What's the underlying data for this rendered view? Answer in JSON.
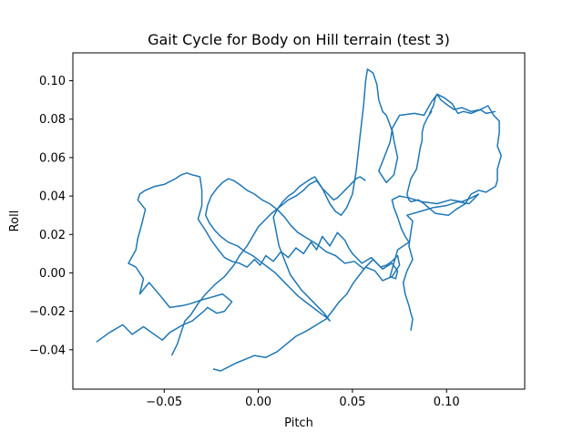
{
  "chart_data": {
    "type": "line",
    "title": "Gait Cycle for Body on Hill terrain (test 3)",
    "xlabel": "Pitch",
    "ylabel": "Roll",
    "xlim": [
      -0.0985,
      0.1415
    ],
    "ylim": [
      -0.0605,
      0.1145
    ],
    "x_ticks": [
      -0.05,
      0.0,
      0.05,
      0.1
    ],
    "x_tick_labels": [
      "−0.05",
      "0.00",
      "0.05",
      "0.10"
    ],
    "y_ticks": [
      -0.04,
      -0.02,
      0.0,
      0.02,
      0.04,
      0.06,
      0.08,
      0.1
    ],
    "y_tick_labels": [
      "−0.04",
      "−0.02",
      "0.00",
      "0.02",
      "0.04",
      "0.06",
      "0.08",
      "0.10"
    ],
    "grid": false,
    "line_color": "#1f77b4",
    "series": [
      {
        "x": [
          -0.086,
          -0.079,
          -0.072,
          -0.067,
          -0.061,
          -0.051,
          -0.047,
          -0.04,
          -0.035,
          -0.029,
          -0.027,
          -0.022,
          -0.018,
          -0.014,
          -0.019,
          -0.026,
          -0.03,
          -0.036,
          -0.04,
          -0.047,
          -0.052,
          -0.058,
          -0.063,
          -0.061,
          -0.065,
          -0.069,
          -0.065,
          -0.064,
          -0.062,
          -0.06,
          -0.064,
          -0.063,
          -0.06,
          -0.055,
          -0.05,
          -0.044,
          -0.041,
          -0.038,
          -0.035,
          -0.031,
          -0.03,
          -0.03,
          -0.032,
          -0.028,
          -0.025,
          -0.022,
          -0.018,
          -0.014,
          -0.01,
          -0.006,
          -0.002,
          0.001,
          0.004,
          0.008,
          0.012,
          0.016,
          0.02,
          0.024,
          0.028,
          0.031,
          0.034,
          0.038,
          0.042,
          0.046,
          0.048,
          0.05,
          0.055,
          0.06,
          0.066,
          0.071,
          0.074,
          0.073,
          0.07,
          0.074,
          0.08,
          0.078,
          0.076,
          0.074,
          0.072,
          0.071,
          0.075,
          0.08,
          0.087,
          0.095,
          0.102,
          0.108,
          0.113,
          0.117,
          0.112,
          0.106,
          0.1,
          0.093,
          0.086,
          0.079,
          0.082,
          0.081,
          0.08,
          0.082,
          0.079,
          0.077,
          0.078,
          0.08,
          0.081,
          0.082,
          0.081
        ],
        "y": [
          -0.036,
          -0.031,
          -0.027,
          -0.032,
          -0.028,
          -0.035,
          -0.031,
          -0.027,
          -0.025,
          -0.02,
          -0.018,
          -0.021,
          -0.02,
          -0.015,
          -0.011,
          -0.013,
          -0.014,
          -0.016,
          -0.017,
          -0.018,
          -0.012,
          -0.005,
          -0.011,
          -0.003,
          0.003,
          0.005,
          0.012,
          0.018,
          0.025,
          0.033,
          0.038,
          0.041,
          0.043,
          0.045,
          0.046,
          0.049,
          0.051,
          0.052,
          0.051,
          0.05,
          0.043,
          0.035,
          0.028,
          0.022,
          0.017,
          0.013,
          0.008,
          0.006,
          0.005,
          0.003,
          0.007,
          0.004,
          0.009,
          0.006,
          0.011,
          0.008,
          0.013,
          0.01,
          0.016,
          0.012,
          0.019,
          0.014,
          0.021,
          0.017,
          0.013,
          0.01,
          0.005,
          0.008,
          0.002,
          0.005,
          0.001,
          -0.003,
          -0.002,
          0.012,
          0.016,
          0.019,
          0.023,
          0.029,
          0.034,
          0.038,
          0.04,
          0.039,
          0.037,
          0.036,
          0.038,
          0.037,
          0.039,
          0.041,
          0.036,
          0.037,
          0.035,
          0.034,
          0.032,
          0.03,
          0.027,
          0.021,
          0.014,
          0.007,
          0.001,
          -0.005,
          -0.011,
          -0.017,
          -0.021,
          -0.024,
          -0.03
        ]
      },
      {
        "x": [
          -0.046,
          -0.043,
          -0.041,
          -0.039,
          -0.036,
          -0.032,
          -0.028,
          -0.023,
          -0.018,
          -0.013,
          -0.01,
          -0.006,
          -0.003,
          0.0,
          0.003,
          0.007,
          0.011,
          0.016,
          0.02,
          0.024,
          0.027,
          0.031,
          0.034,
          0.038,
          0.041,
          0.044,
          0.047,
          0.05,
          0.052,
          0.054,
          0.056,
          0.057,
          0.058,
          0.061,
          0.063,
          0.064,
          0.066,
          0.068,
          0.07,
          0.071,
          0.07,
          0.068,
          0.066,
          0.064,
          0.068,
          0.072,
          0.074,
          0.072,
          0.071,
          0.075,
          0.083,
          0.088,
          0.092,
          0.095,
          0.099,
          0.103,
          0.106,
          0.109,
          0.113,
          0.118,
          0.122,
          0.125,
          0.128,
          0.128,
          0.127,
          0.129,
          0.127,
          0.127,
          0.126,
          0.121,
          0.117,
          0.113,
          0.11,
          0.105,
          0.101,
          0.094,
          0.088,
          0.085,
          0.081,
          0.08,
          0.079,
          0.08,
          0.081,
          0.084,
          0.085,
          0.086,
          0.087,
          0.087,
          0.088,
          0.09,
          0.092,
          0.091,
          0.093,
          0.094,
          0.095,
          0.097,
          0.101,
          0.104,
          0.108,
          0.113,
          0.118,
          0.121,
          0.126
        ],
        "y": [
          -0.043,
          -0.037,
          -0.031,
          -0.025,
          -0.022,
          -0.016,
          -0.011,
          -0.006,
          -0.002,
          0.004,
          0.009,
          0.014,
          0.019,
          0.024,
          0.027,
          0.031,
          0.034,
          0.038,
          0.04,
          0.043,
          0.046,
          0.048,
          0.044,
          0.036,
          0.032,
          0.03,
          0.034,
          0.041,
          0.053,
          0.071,
          0.088,
          0.1,
          0.106,
          0.104,
          0.098,
          0.09,
          0.084,
          0.082,
          0.077,
          0.074,
          0.068,
          0.063,
          0.058,
          0.053,
          0.047,
          0.051,
          0.06,
          0.069,
          0.075,
          0.082,
          0.083,
          0.082,
          0.089,
          0.093,
          0.091,
          0.088,
          0.083,
          0.084,
          0.083,
          0.085,
          0.087,
          0.082,
          0.079,
          0.073,
          0.066,
          0.061,
          0.054,
          0.048,
          0.045,
          0.042,
          0.043,
          0.041,
          0.036,
          0.033,
          0.03,
          0.031,
          0.036,
          0.038,
          0.037,
          0.038,
          0.041,
          0.045,
          0.049,
          0.054,
          0.059,
          0.065,
          0.069,
          0.073,
          0.077,
          0.081,
          0.084,
          0.083,
          0.087,
          0.091,
          0.093,
          0.09,
          0.087,
          0.085,
          0.086,
          0.084,
          0.085,
          0.083,
          0.084
        ]
      },
      {
        "x": [
          -0.024,
          -0.02,
          -0.016,
          -0.012,
          -0.007,
          -0.002,
          0.004,
          0.01,
          0.015,
          0.02,
          0.026,
          0.031,
          0.036,
          0.04,
          0.043,
          0.047,
          0.05,
          0.053,
          0.057,
          0.062,
          0.066,
          0.071,
          0.075,
          0.074,
          0.071,
          0.068,
          0.065,
          0.061,
          0.056,
          0.051,
          0.046,
          0.041,
          0.036,
          0.031,
          0.026,
          0.021,
          0.017,
          0.014,
          0.01,
          0.006,
          0.002,
          -0.002,
          -0.006,
          -0.01,
          -0.013,
          -0.016,
          -0.019,
          -0.022,
          -0.025,
          -0.027,
          -0.028,
          -0.026,
          -0.023,
          -0.02,
          -0.016,
          -0.011,
          -0.007,
          -0.003,
          0.001,
          0.005,
          0.009,
          0.012,
          0.015,
          0.018,
          0.021,
          0.025,
          0.029,
          0.033,
          0.036,
          0.038,
          0.035,
          0.031,
          0.027,
          0.023,
          0.02,
          0.017,
          0.015,
          0.013,
          0.011,
          0.01,
          0.009,
          0.008,
          0.01,
          0.013,
          0.016,
          0.019,
          0.022,
          0.025,
          0.028,
          0.03,
          0.032,
          0.034,
          0.036,
          0.038,
          0.04,
          0.042,
          0.044,
          0.046,
          0.048,
          0.05,
          0.052,
          0.054,
          0.057
        ],
        "y": [
          -0.05,
          -0.051,
          -0.049,
          -0.047,
          -0.045,
          -0.043,
          -0.044,
          -0.041,
          -0.037,
          -0.033,
          -0.03,
          -0.027,
          -0.024,
          -0.019,
          -0.015,
          -0.011,
          -0.006,
          -0.002,
          0.003,
          0.001,
          -0.004,
          -0.002,
          0.004,
          0.009,
          0.006,
          0.004,
          0.003,
          0.007,
          0.002,
          0.006,
          0.005,
          0.009,
          0.011,
          0.015,
          0.018,
          0.021,
          0.025,
          0.029,
          0.033,
          0.036,
          0.038,
          0.041,
          0.043,
          0.046,
          0.048,
          0.049,
          0.047,
          0.044,
          0.04,
          0.035,
          0.03,
          0.026,
          0.022,
          0.019,
          0.016,
          0.014,
          0.011,
          0.009,
          0.006,
          0.003,
          0.0,
          -0.003,
          -0.006,
          -0.009,
          -0.012,
          -0.015,
          -0.018,
          -0.021,
          -0.023,
          -0.025,
          -0.021,
          -0.017,
          -0.013,
          -0.009,
          -0.005,
          -0.001,
          0.004,
          0.009,
          0.014,
          0.019,
          0.024,
          0.029,
          0.033,
          0.037,
          0.04,
          0.042,
          0.045,
          0.047,
          0.049,
          0.05,
          0.047,
          0.044,
          0.042,
          0.04,
          0.038,
          0.039,
          0.041,
          0.043,
          0.045,
          0.047,
          0.049,
          0.05,
          0.048
        ]
      }
    ]
  }
}
